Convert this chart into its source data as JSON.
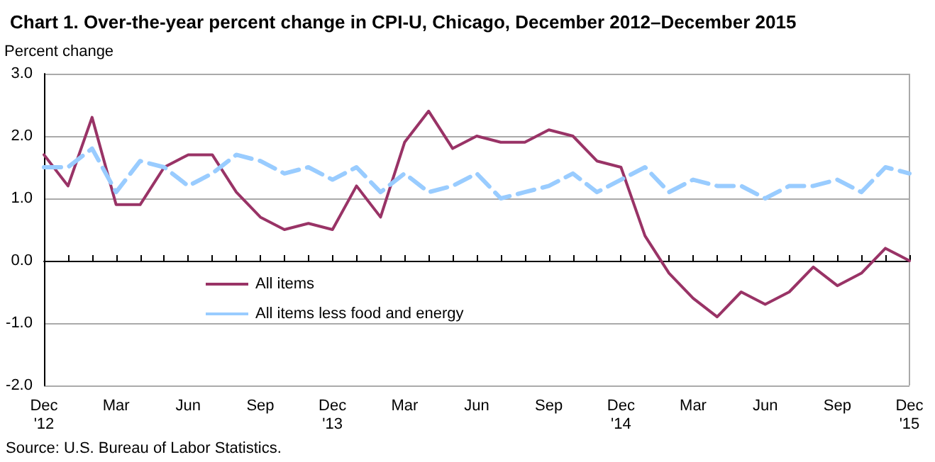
{
  "chart_data": {
    "type": "line",
    "title": "Chart 1. Over-the-year percent change in CPI-U, Chicago, December 2012–December 2015",
    "ylabel": "Percent change",
    "categories": [
      "Dec\n'12",
      null,
      null,
      "Mar",
      null,
      null,
      "Jun",
      null,
      null,
      "Sep",
      null,
      null,
      "Dec\n'13",
      null,
      null,
      "Mar",
      null,
      null,
      "Jun",
      null,
      null,
      "Sep",
      null,
      null,
      "Dec\n'14",
      null,
      null,
      "Mar",
      null,
      null,
      "Jun",
      null,
      null,
      "Sep",
      null,
      null,
      "Dec\n'15"
    ],
    "series": [
      {
        "name": "All items",
        "color": "#993366",
        "line_style": "solid",
        "values": [
          1.7,
          1.2,
          2.3,
          0.9,
          0.9,
          1.5,
          1.7,
          1.7,
          1.1,
          0.7,
          0.5,
          0.6,
          0.5,
          1.2,
          0.7,
          1.9,
          2.4,
          1.8,
          2.0,
          1.9,
          1.9,
          2.1,
          2.0,
          1.6,
          1.5,
          0.4,
          -0.2,
          -0.6,
          -0.9,
          -0.5,
          -0.7,
          -0.5,
          -0.1,
          -0.4,
          -0.2,
          0.2,
          0.0
        ]
      },
      {
        "name": "All items less food and energy",
        "color": "#99ccff",
        "line_style": "dashed",
        "values": [
          1.5,
          1.5,
          1.8,
          1.1,
          1.6,
          1.5,
          1.2,
          1.4,
          1.7,
          1.6,
          1.4,
          1.5,
          1.3,
          1.5,
          1.1,
          1.4,
          1.1,
          1.2,
          1.4,
          1.0,
          1.1,
          1.2,
          1.4,
          1.1,
          1.3,
          1.5,
          1.1,
          1.3,
          1.2,
          1.2,
          1.0,
          1.2,
          1.2,
          1.3,
          1.1,
          1.5,
          1.4
        ]
      }
    ],
    "ylim": [
      -2,
      3
    ],
    "yticks": [
      {
        "value": -2,
        "label": "-2.0"
      },
      {
        "value": -1,
        "label": "-1.0"
      },
      {
        "value": 0,
        "label": "0.0"
      },
      {
        "value": 1,
        "label": "1.0"
      },
      {
        "value": 2,
        "label": "2.0"
      },
      {
        "value": 3,
        "label": "3.0"
      }
    ],
    "grid": "y",
    "legend": "bottom left",
    "marker": "none",
    "annotations": [
      "Source: U.S. Bureau of Labor Statistics."
    ]
  }
}
